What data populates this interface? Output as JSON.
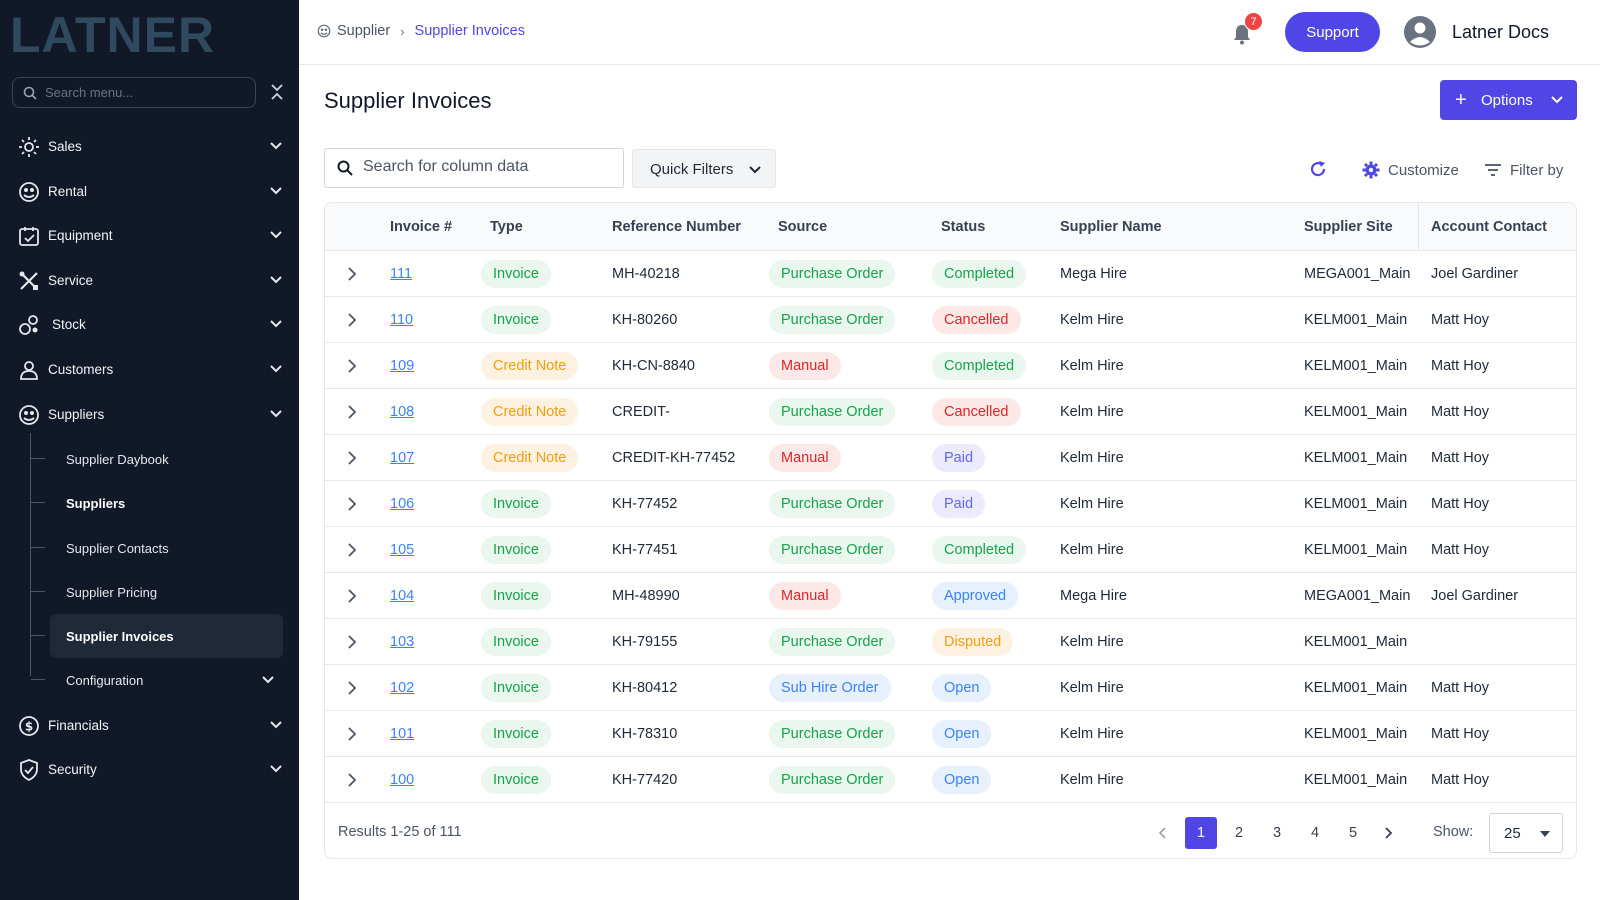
{
  "app": {
    "logo_text": "LATNER"
  },
  "sidebar": {
    "search_placeholder": "Search menu...",
    "items": [
      {
        "label": "Sales",
        "icon": "sales-icon"
      },
      {
        "label": "Rental",
        "icon": "rental-icon"
      },
      {
        "label": "Equipment",
        "icon": "equipment-icon"
      },
      {
        "label": "Service",
        "icon": "service-icon"
      },
      {
        "label": "Stock",
        "icon": "stock-icon"
      },
      {
        "label": "Customers",
        "icon": "customers-icon"
      },
      {
        "label": "Suppliers",
        "icon": "suppliers-icon"
      },
      {
        "label": "Financials",
        "icon": "financials-icon"
      },
      {
        "label": "Security",
        "icon": "security-icon"
      }
    ],
    "supplier_subitems": [
      {
        "label": "Supplier Daybook"
      },
      {
        "label": "Suppliers"
      },
      {
        "label": "Supplier Contacts"
      },
      {
        "label": "Supplier Pricing"
      },
      {
        "label": "Supplier Invoices"
      },
      {
        "label": "Configuration"
      }
    ]
  },
  "topbar": {
    "breadcrumb": [
      "Supplier",
      "Supplier Invoices"
    ],
    "notification_count": "7",
    "support_label": "Support",
    "user_name": "Latner Docs"
  },
  "main": {
    "title": "Supplier Invoices",
    "options_label": "Options",
    "search_placeholder": "Search for column data",
    "quick_filters_label": "Quick Filters",
    "customize_label": "Customize",
    "filter_by_label": "Filter by"
  },
  "colors": {
    "accent": "#4f46e5",
    "sidebar_bg": "#111827",
    "pill_invoice": "#16a34a",
    "pill_credit": "#f59e0b",
    "pill_po": "#16a34a",
    "pill_manual": "#dc2626",
    "pill_subhire": "#3b82f6",
    "status_completed": "#16a34a",
    "status_cancelled": "#dc2626",
    "status_paid": "#6366f1",
    "status_approved": "#3b82f6",
    "status_disputed": "#f59e0b",
    "status_open": "#3b82f6"
  },
  "table": {
    "columns": [
      "Invoice #",
      "Type",
      "Reference Number",
      "Source",
      "Status",
      "Supplier Name",
      "Supplier Site",
      "Account Contact"
    ],
    "rows": [
      {
        "invoice": "111",
        "type": "Invoice",
        "reference": "MH-40218",
        "source": "Purchase Order",
        "status": "Completed",
        "supplier": "Mega Hire",
        "site": "MEGA001_Main",
        "contact": "Joel Gardiner"
      },
      {
        "invoice": "110",
        "type": "Invoice",
        "reference": "KH-80260",
        "source": "Purchase Order",
        "status": "Cancelled",
        "supplier": "Kelm Hire",
        "site": "KELM001_Main",
        "contact": "Matt Hoy"
      },
      {
        "invoice": "109",
        "type": "Credit Note",
        "reference": "KH-CN-8840",
        "source": "Manual",
        "status": "Completed",
        "supplier": "Kelm Hire",
        "site": "KELM001_Main",
        "contact": "Matt Hoy"
      },
      {
        "invoice": "108",
        "type": "Credit Note",
        "reference": "CREDIT-",
        "source": "Purchase Order",
        "status": "Cancelled",
        "supplier": "Kelm Hire",
        "site": "KELM001_Main",
        "contact": "Matt Hoy"
      },
      {
        "invoice": "107",
        "type": "Credit Note",
        "reference": "CREDIT-KH-77452",
        "source": "Manual",
        "status": "Paid",
        "supplier": "Kelm Hire",
        "site": "KELM001_Main",
        "contact": "Matt Hoy"
      },
      {
        "invoice": "106",
        "type": "Invoice",
        "reference": "KH-77452",
        "source": "Purchase Order",
        "status": "Paid",
        "supplier": "Kelm Hire",
        "site": "KELM001_Main",
        "contact": "Matt Hoy"
      },
      {
        "invoice": "105",
        "type": "Invoice",
        "reference": "KH-77451",
        "source": "Purchase Order",
        "status": "Completed",
        "supplier": "Kelm Hire",
        "site": "KELM001_Main",
        "contact": "Matt Hoy"
      },
      {
        "invoice": "104",
        "type": "Invoice",
        "reference": "MH-48990",
        "source": "Manual",
        "status": "Approved",
        "supplier": "Mega Hire",
        "site": "MEGA001_Main",
        "contact": "Joel Gardiner"
      },
      {
        "invoice": "103",
        "type": "Invoice",
        "reference": "KH-79155",
        "source": "Purchase Order",
        "status": "Disputed",
        "supplier": "Kelm Hire",
        "site": "KELM001_Main",
        "contact": ""
      },
      {
        "invoice": "102",
        "type": "Invoice",
        "reference": "KH-80412",
        "source": "Sub Hire Order",
        "status": "Open",
        "supplier": "Kelm Hire",
        "site": "KELM001_Main",
        "contact": "Matt Hoy"
      },
      {
        "invoice": "101",
        "type": "Invoice",
        "reference": "KH-78310",
        "source": "Purchase Order",
        "status": "Open",
        "supplier": "Kelm Hire",
        "site": "KELM001_Main",
        "contact": "Matt Hoy"
      },
      {
        "invoice": "100",
        "type": "Invoice",
        "reference": "KH-77420",
        "source": "Purchase Order",
        "status": "Open",
        "supplier": "Kelm Hire",
        "site": "KELM001_Main",
        "contact": "Matt Hoy"
      }
    ]
  },
  "pagination": {
    "results_text": "Results 1-25 of 111",
    "pages": [
      "1",
      "2",
      "3",
      "4",
      "5"
    ],
    "active_page": "1",
    "show_label": "Show:",
    "page_size": "25"
  }
}
